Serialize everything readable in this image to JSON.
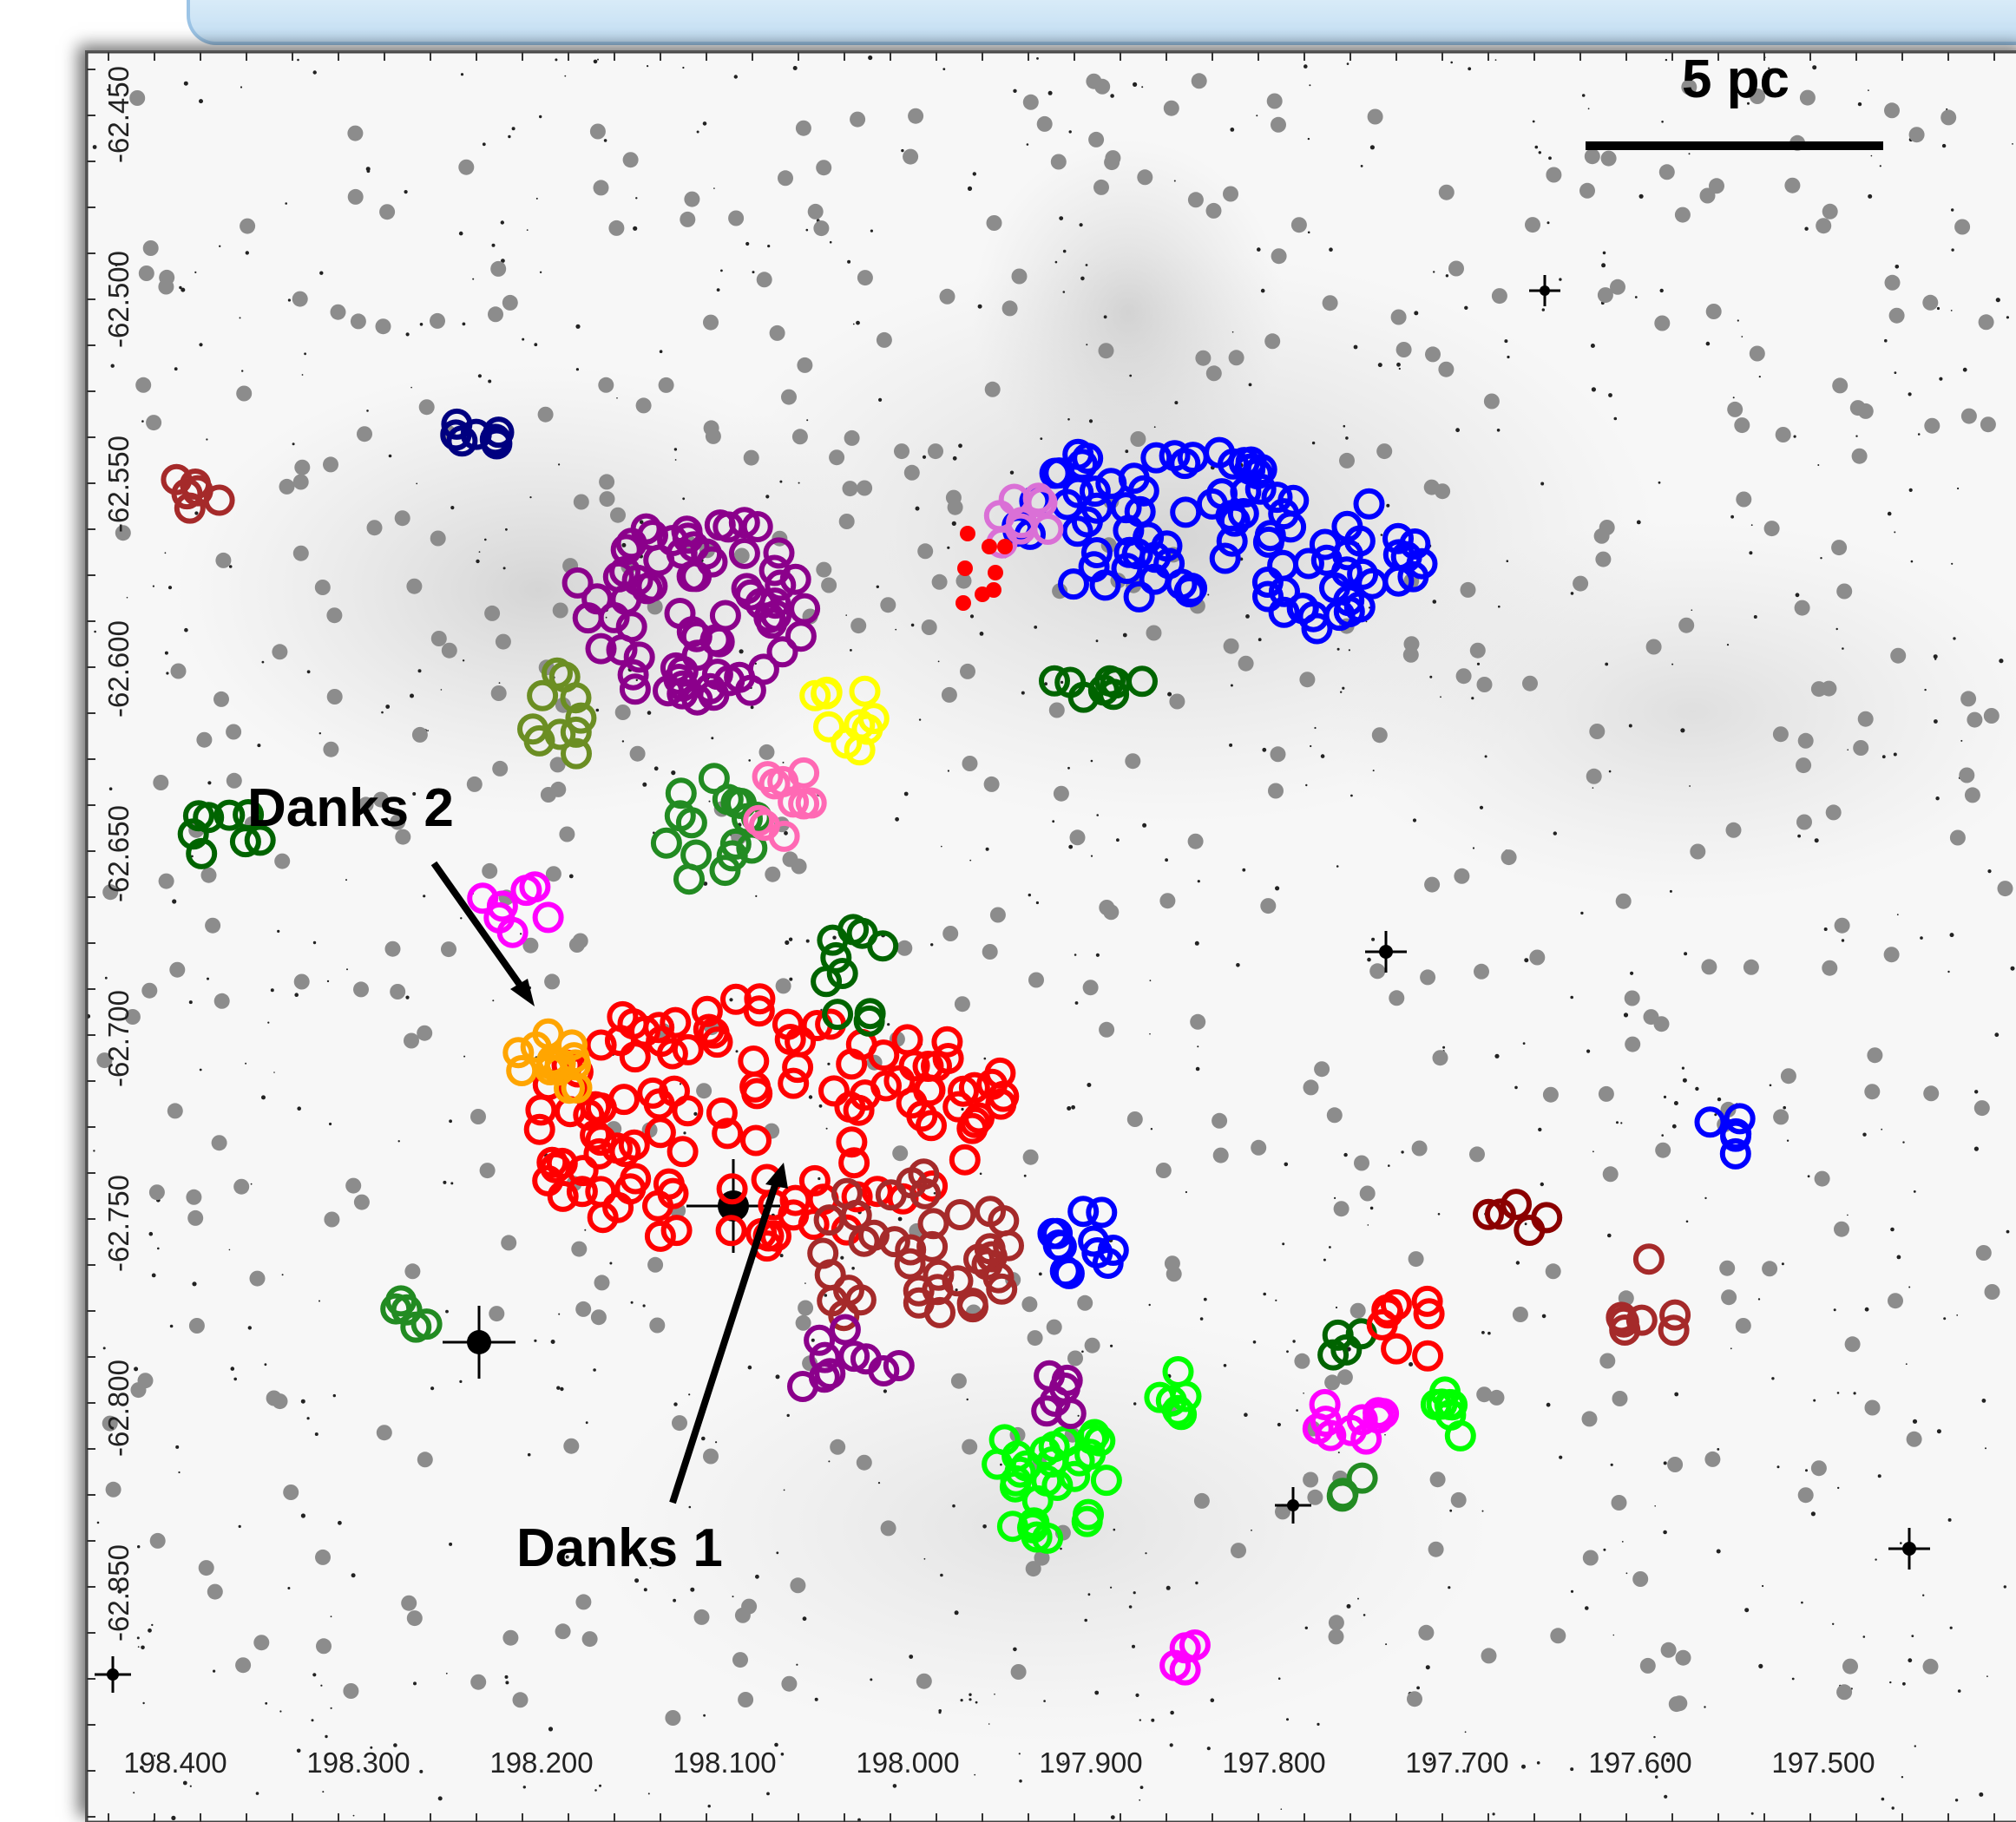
{
  "figure": {
    "scale_bar_label": "5 pc",
    "cluster_labels": {
      "danks1": "Danks 1",
      "danks2": "Danks 2"
    },
    "x_ticks": [
      "198.400",
      "198.300",
      "198.200",
      "198.100",
      "198.000",
      "197.900",
      "197.800",
      "197.700",
      "197.600",
      "197.500"
    ],
    "y_ticks": [
      "-62.450",
      "-62.500",
      "-62.550",
      "-62.600",
      "-62.650",
      "-62.700",
      "-62.750",
      "-62.800",
      "-62.850"
    ]
  },
  "colors": {
    "background": "#f7f7f7",
    "field_star": "#8c8c8c",
    "red": "#ff0000",
    "purple": "#8b008b",
    "blue": "#0000ff",
    "navy": "#000080",
    "dark_green": "#006400",
    "forest_green": "#228b22",
    "lime": "#00ff00",
    "olive": "#6b8e23",
    "yellow": "#ffff00",
    "pink": "#ff69b4",
    "magenta": "#ff00ff",
    "orange": "#ffa500",
    "brown": "#a52a2a",
    "maroon": "#8b0000",
    "orchid": "#da70d6"
  }
}
